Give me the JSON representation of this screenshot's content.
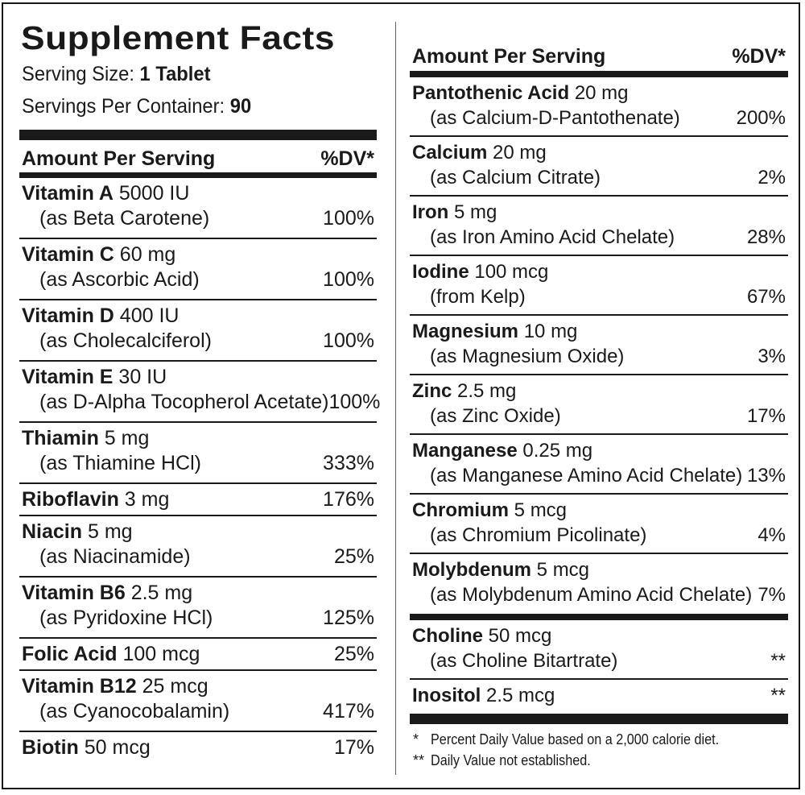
{
  "title": "Supplement Facts",
  "serving_size_label": "Serving Size:",
  "serving_size_value": "1 Tablet",
  "servings_label": "Servings Per Container:",
  "servings_value": "90",
  "header_amount": "Amount Per Serving",
  "header_dv": "%DV*",
  "left_nutrients": [
    {
      "name": "Vitamin A",
      "amount": "5000 IU",
      "source": "(as Beta Carotene)",
      "dv": "100%"
    },
    {
      "name": "Vitamin C",
      "amount": "60 mg",
      "source": "(as Ascorbic Acid)",
      "dv": "100%"
    },
    {
      "name": "Vitamin D",
      "amount": "400 IU",
      "source": "(as Cholecalciferol)",
      "dv": "100%"
    },
    {
      "name": "Vitamin E",
      "amount": "30 IU",
      "source": "(as D-Alpha Tocopherol Acetate)",
      "dv": "100%"
    },
    {
      "name": "Thiamin",
      "amount": "5 mg",
      "source": "(as Thiamine HCl)",
      "dv": "333%"
    },
    {
      "name": "Riboflavin",
      "amount": "3 mg",
      "source": "",
      "dv": "176%"
    },
    {
      "name": "Niacin",
      "amount": "5 mg",
      "source": "(as Niacinamide)",
      "dv": "25%"
    },
    {
      "name": "Vitamin B6",
      "amount": "2.5 mg",
      "source": "(as Pyridoxine HCl)",
      "dv": "125%"
    },
    {
      "name": "Folic Acid",
      "amount": "100 mcg",
      "source": "",
      "dv": "25%"
    },
    {
      "name": "Vitamin B12",
      "amount": "25 mcg",
      "source": "(as Cyanocobalamin)",
      "dv": "417%"
    },
    {
      "name": "Biotin",
      "amount": "50 mcg",
      "source": "",
      "dv": "17%"
    }
  ],
  "right_nutrients": [
    {
      "name": "Pantothenic Acid",
      "amount": "20 mg",
      "source": "(as Calcium-D-Pantothenate)",
      "dv": "200%"
    },
    {
      "name": "Calcium",
      "amount": "20 mg",
      "source": "(as Calcium Citrate)",
      "dv": "2%"
    },
    {
      "name": "Iron",
      "amount": "5 mg",
      "source": "(as Iron Amino Acid Chelate)",
      "dv": "28%"
    },
    {
      "name": "Iodine",
      "amount": "100 mcg",
      "source": "(from Kelp)",
      "dv": "67%"
    },
    {
      "name": "Magnesium",
      "amount": "10 mg",
      "source": "(as Magnesium Oxide)",
      "dv": "3%"
    },
    {
      "name": "Zinc",
      "amount": "2.5 mg",
      "source": "(as Zinc Oxide)",
      "dv": "17%"
    },
    {
      "name": "Manganese",
      "amount": "0.25 mg",
      "source": "(as Manganese Amino Acid Chelate)",
      "dv": "13%"
    },
    {
      "name": "Chromium",
      "amount": "5 mcg",
      "source": "(as Chromium Picolinate)",
      "dv": "4%"
    },
    {
      "name": "Molybdenum",
      "amount": "5 mcg",
      "source": "(as Molybdenum Amino Acid Chelate)",
      "dv": "7%"
    }
  ],
  "other_ingredients": [
    {
      "name": "Choline",
      "amount": "50 mcg",
      "source": "(as Choline Bitartrate)",
      "dv": "**"
    },
    {
      "name": "Inositol",
      "amount": "2.5 mcg",
      "source": "",
      "dv": "**"
    }
  ],
  "footnote_1_mark": "*",
  "footnote_1": "Percent Daily Value based on a 2,000 calorie diet.",
  "footnote_2_mark": "**",
  "footnote_2": "Daily Value not established.",
  "colors": {
    "ink": "#1a1a1a",
    "background": "#ffffff"
  }
}
